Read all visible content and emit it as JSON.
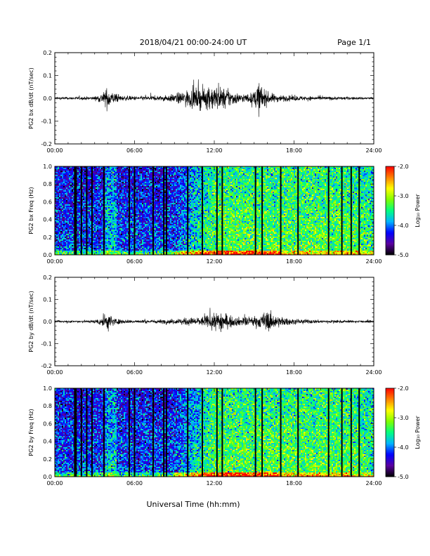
{
  "header": {
    "date_range": "2018/04/21  00:00-24:00 UT",
    "page": "Page 1/1"
  },
  "footer": {
    "xlabel": "Universal Time (hh:mm)"
  },
  "colorbar": {
    "label": "Log₁₀ Power",
    "ticks": [
      "-2.0",
      "-3.0",
      "-4.0",
      "-5.0"
    ],
    "range": [
      -5.0,
      -2.0
    ],
    "colors": [
      "#000000",
      "#5a00a0",
      "#0000ff",
      "#00b4ff",
      "#00ff80",
      "#80ff00",
      "#ffff00",
      "#ff8000",
      "#ff0000"
    ]
  },
  "chart_data": [
    {
      "type": "line",
      "name": "bx-dbdt",
      "ylabel": "PG2 bx dB/dt (nT/sec)",
      "x_ticks": [
        "00:00",
        "06:00",
        "12:00",
        "18:00",
        "24:00"
      ],
      "y_ticks": [
        "0.2",
        "0.1",
        "0.0",
        "-0.1",
        "-0.2"
      ],
      "xlim": [
        0,
        24
      ],
      "ylim": [
        -0.2,
        0.2
      ],
      "envelope": {
        "hours": [
          0,
          1,
          2,
          3,
          3.7,
          4.0,
          4.3,
          5,
          6,
          7,
          8,
          8.5,
          9,
          9.5,
          10,
          10.5,
          11,
          11.5,
          12,
          12.5,
          13,
          13.5,
          14,
          14.5,
          15,
          15.3,
          15.6,
          16,
          16.5,
          17,
          18,
          19,
          20,
          21,
          22,
          23,
          24
        ],
        "amplitude": [
          0.006,
          0.006,
          0.007,
          0.008,
          0.03,
          0.055,
          0.03,
          0.012,
          0.01,
          0.01,
          0.012,
          0.015,
          0.02,
          0.03,
          0.04,
          0.045,
          0.05,
          0.05,
          0.06,
          0.05,
          0.045,
          0.03,
          0.02,
          0.02,
          0.03,
          0.08,
          0.05,
          0.03,
          0.02,
          0.015,
          0.012,
          0.01,
          0.009,
          0.008,
          0.007,
          0.006,
          0.006
        ]
      }
    },
    {
      "type": "heatmap",
      "name": "bx-spectrogram",
      "ylabel": "PG2 bx Freq (Hz)",
      "x_ticks": [
        "00:00",
        "06:00",
        "12:00",
        "18:00",
        "24:00"
      ],
      "y_ticks": [
        "1.0",
        "0.8",
        "0.6",
        "0.4",
        "0.2",
        "0.0"
      ],
      "xlim": [
        0,
        24
      ],
      "ylim": [
        0.0,
        1.0
      ],
      "zlim": [
        -5.0,
        -2.0
      ],
      "gap_hours": [
        1.5,
        1.6,
        2.0,
        2.4,
        2.8,
        3.7,
        5.6,
        6.0,
        7.4,
        8.2,
        8.4,
        10.0,
        11.1,
        12.2,
        12.6,
        15.1,
        15.6,
        17.0,
        18.3,
        20.6,
        21.6,
        22.3,
        22.9
      ]
    },
    {
      "type": "line",
      "name": "by-dbdt",
      "ylabel": "PG2 by dB/dt (nT/sec)",
      "x_ticks": [
        "00:00",
        "06:00",
        "12:00",
        "18:00",
        "24:00"
      ],
      "y_ticks": [
        "0.2",
        "0.1",
        "0.0",
        "-0.1",
        "-0.2"
      ],
      "xlim": [
        0,
        24
      ],
      "ylim": [
        -0.2,
        0.2
      ],
      "envelope": {
        "hours": [
          0,
          1,
          2,
          3,
          3.6,
          4.0,
          4.4,
          5,
          6,
          7,
          8,
          9,
          10,
          11,
          11.5,
          12,
          12.5,
          13,
          13.5,
          14,
          15,
          15.5,
          16,
          16.5,
          17,
          17.5,
          18,
          19,
          20,
          21,
          22,
          23,
          24
        ],
        "amplitude": [
          0.005,
          0.005,
          0.006,
          0.008,
          0.025,
          0.045,
          0.02,
          0.01,
          0.008,
          0.008,
          0.01,
          0.012,
          0.018,
          0.022,
          0.03,
          0.035,
          0.06,
          0.03,
          0.022,
          0.02,
          0.025,
          0.03,
          0.055,
          0.03,
          0.025,
          0.018,
          0.012,
          0.01,
          0.008,
          0.007,
          0.006,
          0.005,
          0.005
        ]
      }
    },
    {
      "type": "heatmap",
      "name": "by-spectrogram",
      "ylabel": "PG2 by Freq (Hz)",
      "x_ticks": [
        "00:00",
        "06:00",
        "12:00",
        "18:00",
        "24:00"
      ],
      "y_ticks": [
        "1.0",
        "0.8",
        "0.6",
        "0.4",
        "0.2",
        "0.0"
      ],
      "xlim": [
        0,
        24
      ],
      "ylim": [
        0.0,
        1.0
      ],
      "zlim": [
        -5.0,
        -2.0
      ],
      "gap_hours": [
        1.5,
        1.6,
        2.0,
        2.4,
        2.8,
        3.7,
        5.6,
        6.0,
        7.4,
        8.2,
        8.4,
        10.0,
        11.1,
        12.2,
        12.6,
        15.1,
        15.6,
        17.0,
        18.3,
        20.6,
        21.6,
        22.3,
        22.9
      ]
    }
  ]
}
